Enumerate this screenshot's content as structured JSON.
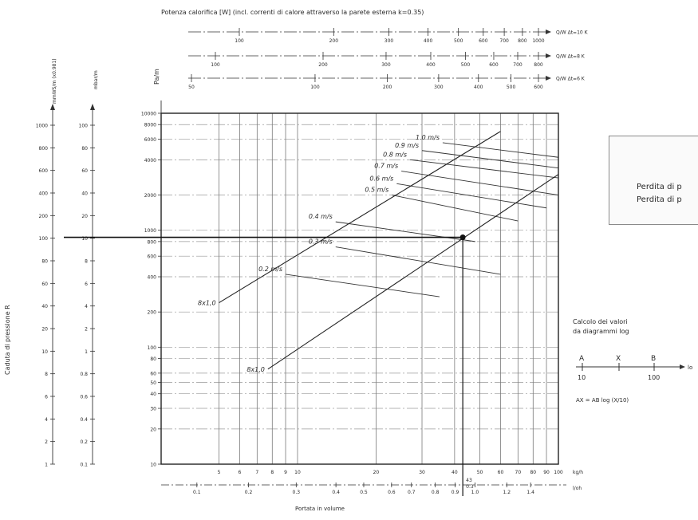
{
  "chart_data": {
    "type": "line",
    "title": "Potenza calorifica [W] (incl. correnti di calore attraverso la parete esterna k=0.35)",
    "xlabel": "Portata in volume",
    "ylabel": "Caduta di pressione R",
    "xscale": "log",
    "yscale": "log",
    "xlim": [
      3,
      100
    ],
    "ylim": [
      10,
      10000
    ],
    "grid": true,
    "x_unit_kgh": "kg/h",
    "x_unit_lh": "l/oh",
    "x_ticks_kgh": [
      "5",
      "6",
      "7",
      "8",
      "9",
      "10",
      "20",
      "30",
      "40",
      "50",
      "60",
      "70",
      "80",
      "90",
      "100"
    ],
    "x_ticks_lh": [
      "0.1",
      "0.2",
      "0.3",
      "0.4",
      "0.5",
      "0.6",
      "0.7",
      "0.8",
      "0.9",
      "1.0",
      "1.2",
      "1.4"
    ],
    "marker_x_label": "43",
    "marker_y_label": "0.3",
    "y_ticks_pam": [
      "10",
      "20",
      "30",
      "40",
      "50",
      "60",
      "80",
      "100",
      "200",
      "400",
      "600",
      "800",
      "1000",
      "2000",
      "4000",
      "6000",
      "8000",
      "10000"
    ],
    "left_axes": [
      {
        "label": "mmWS/m (x0.981)",
        "ticks": [
          "1000",
          "800",
          "600",
          "400",
          "200",
          "100",
          "80",
          "60",
          "40",
          "20",
          "10",
          "8",
          "6",
          "4",
          "2",
          "1"
        ]
      },
      {
        "label": "mbar/m",
        "ticks": [
          "100",
          "80",
          "60",
          "40",
          "20",
          "10",
          "8",
          "6",
          "4",
          "2",
          "1",
          "0.8",
          "0.6",
          "0.4",
          "0.2",
          "0.1"
        ]
      },
      {
        "label": "Pa/m",
        "ticks": []
      }
    ],
    "top_scales": [
      {
        "label": "Q/W Δt=10 K",
        "ticks": [
          "100",
          "200",
          "300",
          "400",
          "500",
          "600",
          "700",
          "800",
          "1000"
        ]
      },
      {
        "label": "Q/W Δt=8 K",
        "ticks": [
          "100",
          "200",
          "300",
          "400",
          "500",
          "600",
          "700",
          "800"
        ]
      },
      {
        "label": "Q/W Δt=6 K",
        "ticks": [
          "50",
          "100",
          "200",
          "300",
          "400",
          "500",
          "600"
        ]
      }
    ],
    "velocity_lines": [
      {
        "label": "0.2 m/s",
        "x": [
          9,
          35
        ],
        "y": [
          420,
          270
        ]
      },
      {
        "label": "0.3 m/s",
        "x": [
          14,
          60
        ],
        "y": [
          720,
          420
        ]
      },
      {
        "label": "0.4 m/s",
        "x": [
          14,
          48
        ],
        "y": [
          1180,
          800
        ]
      },
      {
        "label": "0.5 m/s",
        "x": [
          23,
          70
        ],
        "y": [
          2000,
          1200
        ]
      },
      {
        "label": "0.6 m/s",
        "x": [
          24,
          90
        ],
        "y": [
          2500,
          1550
        ]
      },
      {
        "label": "0.7 m/s",
        "x": [
          25,
          100
        ],
        "y": [
          3200,
          2000
        ]
      },
      {
        "label": "0.8 m/s",
        "x": [
          27,
          100
        ],
        "y": [
          4000,
          2800
        ]
      },
      {
        "label": "0.9 m/s",
        "x": [
          30,
          100
        ],
        "y": [
          4800,
          3400
        ]
      },
      {
        "label": "1.0 m/s",
        "x": [
          36,
          100
        ],
        "y": [
          5600,
          4200
        ]
      }
    ],
    "pipe_lines": [
      {
        "label": "8x1,0",
        "x": [
          5,
          60
        ],
        "y": [
          240,
          7000
        ]
      },
      {
        "label": "8x1,0",
        "x": [
          7.7,
          100
        ],
        "y": [
          65,
          3000
        ]
      }
    ],
    "operating_point": {
      "x": 43,
      "y": 870
    }
  },
  "legend_box": {
    "line1": "Perdita di p",
    "line2": "Perdita di p"
  },
  "log_calc": {
    "title1": "Calcolo dei valori",
    "title2": "da diagrammi log",
    "a_label": "A",
    "x_label": "X",
    "b_label": "B",
    "a_value": "10",
    "b_value": "100",
    "axis_label": "log",
    "formula": "AX = AB log (X/10)"
  }
}
